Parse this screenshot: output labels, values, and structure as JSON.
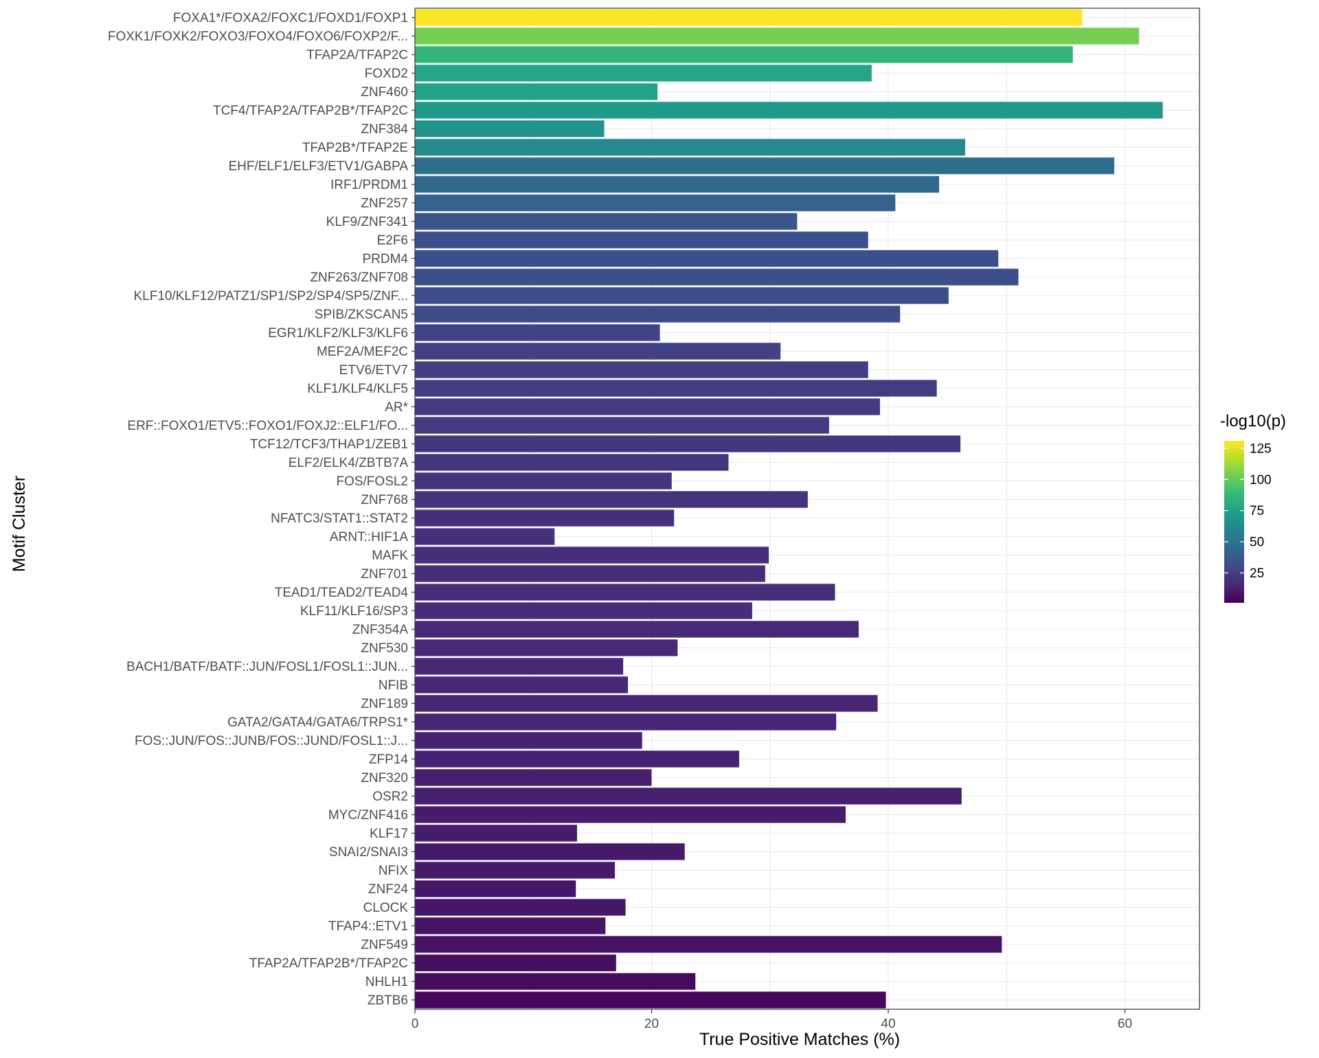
{
  "chart_data": {
    "type": "bar",
    "orientation": "horizontal",
    "xlabel": "True Positive Matches (%)",
    "ylabel": "Motif Cluster",
    "xlim": [
      0,
      66.3
    ],
    "xticks": [
      "0",
      "20",
      "40",
      "60"
    ],
    "grid": true,
    "legend": {
      "title": "-log10(p)",
      "placement": "right",
      "range": [
        1,
        131
      ],
      "ticks": [
        "125",
        "100",
        "75",
        "50",
        "25"
      ],
      "colors": [
        "#440154",
        "#482878",
        "#3E4A89",
        "#31688E",
        "#26828E",
        "#1F9E89",
        "#35B779",
        "#6DCD59",
        "#B4DE2C",
        "#FDE725"
      ]
    },
    "categories": [
      "FOXA1*/FOXA2/FOXC1/FOXD1/FOXP1",
      "FOXK1/FOXK2/FOXO3/FOXO4/FOXO6/FOXP2/F...",
      "TFAP2A/TFAP2C",
      "FOXD2",
      "ZNF460",
      "TCF4/TFAP2A/TFAP2B*/TFAP2C",
      "ZNF384",
      "TFAP2B*/TFAP2E",
      "EHF/ELF1/ELF3/ETV1/GABPA",
      "IRF1/PRDM1",
      "ZNF257",
      "KLF9/ZNF341",
      "E2F6",
      "PRDM4",
      "ZNF263/ZNF708",
      "KLF10/KLF12/PATZ1/SP1/SP2/SP4/SP5/ZNF...",
      "SPIB/ZKSCAN5",
      "EGR1/KLF2/KLF3/KLF6",
      "MEF2A/MEF2C",
      "ETV6/ETV7",
      "KLF1/KLF4/KLF5",
      "AR*",
      "ERF::FOXO1/ETV5::FOXO1/FOXJ2::ELF1/FO...",
      "TCF12/TCF3/THAP1/ZEB1",
      "ELF2/ELK4/ZBTB7A",
      "FOS/FOSL2",
      "ZNF768",
      "NFATC3/STAT1::STAT2",
      "ARNT::HIF1A",
      "MAFK",
      "ZNF701",
      "TEAD1/TEAD2/TEAD4",
      "KLF11/KLF16/SP3",
      "ZNF354A",
      "ZNF530",
      "BACH1/BATF/BATF::JUN/FOSL1/FOSL1::JUN...",
      "NFIB",
      "ZNF189",
      "GATA2/GATA4/GATA6/TRPS1*",
      "FOS::JUN/FOS::JUNB/FOS::JUND/FOSL1::J...",
      "ZFP14",
      "ZNF320",
      "OSR2",
      "MYC/ZNF416",
      "KLF17",
      "SNAI2/SNAI3",
      "NFIX",
      "ZNF24",
      "CLOCK",
      "TFAP4::ETV1",
      "ZNF549",
      "TFAP2A/TFAP2B*/TFAP2C",
      "NHLH1",
      "ZBTB6"
    ],
    "values": [
      56.4,
      61.2,
      55.6,
      38.6,
      20.5,
      63.2,
      16.0,
      46.5,
      59.1,
      44.3,
      40.6,
      32.3,
      38.3,
      49.3,
      51.0,
      45.1,
      41.0,
      20.7,
      30.9,
      38.3,
      44.1,
      39.3,
      35.0,
      46.1,
      26.5,
      21.7,
      33.2,
      21.9,
      11.8,
      29.9,
      29.6,
      35.5,
      28.5,
      37.5,
      22.2,
      17.6,
      18.0,
      39.1,
      35.6,
      19.2,
      27.4,
      20.0,
      46.2,
      36.4,
      13.7,
      22.8,
      16.9,
      13.6,
      17.8,
      16.1,
      49.6,
      17.0,
      23.7,
      39.8
    ],
    "neg_log10_p": [
      131,
      104,
      86,
      77,
      76,
      71,
      67,
      63,
      48,
      45,
      41,
      35,
      33,
      33,
      32,
      32,
      31,
      27,
      26,
      25,
      24,
      23,
      23,
      22,
      21,
      20,
      20,
      19,
      19,
      18,
      18,
      17,
      17,
      16,
      16,
      15,
      15,
      14,
      14,
      13,
      13,
      12,
      12,
      11,
      11,
      10,
      10,
      9,
      9,
      8,
      7,
      6,
      5,
      3
    ]
  }
}
